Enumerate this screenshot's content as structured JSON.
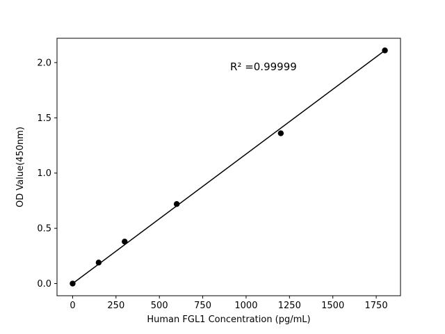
{
  "chart_data": {
    "type": "scatter",
    "title": "",
    "xlabel": "Human FGL1 Concentration (pg/mL)",
    "ylabel": "OD Value(450nm)",
    "x": [
      0,
      150,
      300,
      600,
      1200,
      1800
    ],
    "y": [
      0.0,
      0.19,
      0.38,
      0.72,
      1.36,
      2.11
    ],
    "fit_line": {
      "x": [
        0,
        1800
      ],
      "y": [
        0.0,
        2.11
      ]
    },
    "annotation": {
      "text": "R² =0.99999",
      "x": 1100,
      "y": 1.93
    },
    "xticks": [
      0,
      250,
      500,
      750,
      1000,
      1250,
      1500,
      1750
    ],
    "xtick_labels": [
      "0",
      "250",
      "500",
      "750",
      "1000",
      "1250",
      "1500",
      "1750"
    ],
    "yticks": [
      0.0,
      0.5,
      1.0,
      1.5,
      2.0
    ],
    "ytick_labels": [
      "0.0",
      "0.5",
      "1.0",
      "1.5",
      "2.0"
    ],
    "xlim": [
      -90,
      1890
    ],
    "ylim": [
      -0.11,
      2.22
    ],
    "grid": false,
    "legend": null,
    "marker_color": "#000000",
    "line_color": "#000000",
    "background_color": "#ffffff"
  }
}
